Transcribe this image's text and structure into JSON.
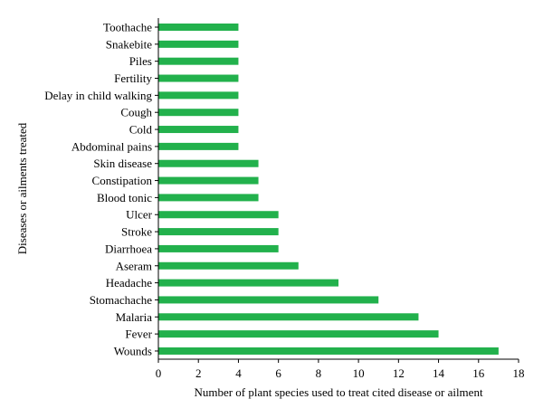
{
  "chart_data": {
    "type": "bar",
    "orientation": "horizontal",
    "categories": [
      "Toothache",
      "Snakebite",
      "Piles",
      "Fertility",
      "Delay in child walking",
      "Cough",
      "Cold",
      "Abdominal pains",
      "Skin disease",
      "Constipation",
      "Blood tonic",
      "Ulcer",
      "Stroke",
      "Diarrhoea",
      "Aseram",
      "Headache",
      "Stomachache",
      "Malaria",
      "Fever",
      "Wounds"
    ],
    "values": [
      4,
      4,
      4,
      4,
      4,
      4,
      4,
      4,
      5,
      5,
      5,
      6,
      6,
      6,
      7,
      9,
      11,
      13,
      14,
      17
    ],
    "title": "",
    "xlabel": "Number of plant species used to treat cited disease or ailment",
    "ylabel": "Diseases or ailments treated",
    "xlim": [
      0,
      18
    ],
    "xticks": [
      "0",
      "2",
      "4",
      "6",
      "8",
      "10",
      "12",
      "14",
      "16",
      "18"
    ],
    "grid": false,
    "legend": "none",
    "bar_color": "#22b14c"
  }
}
